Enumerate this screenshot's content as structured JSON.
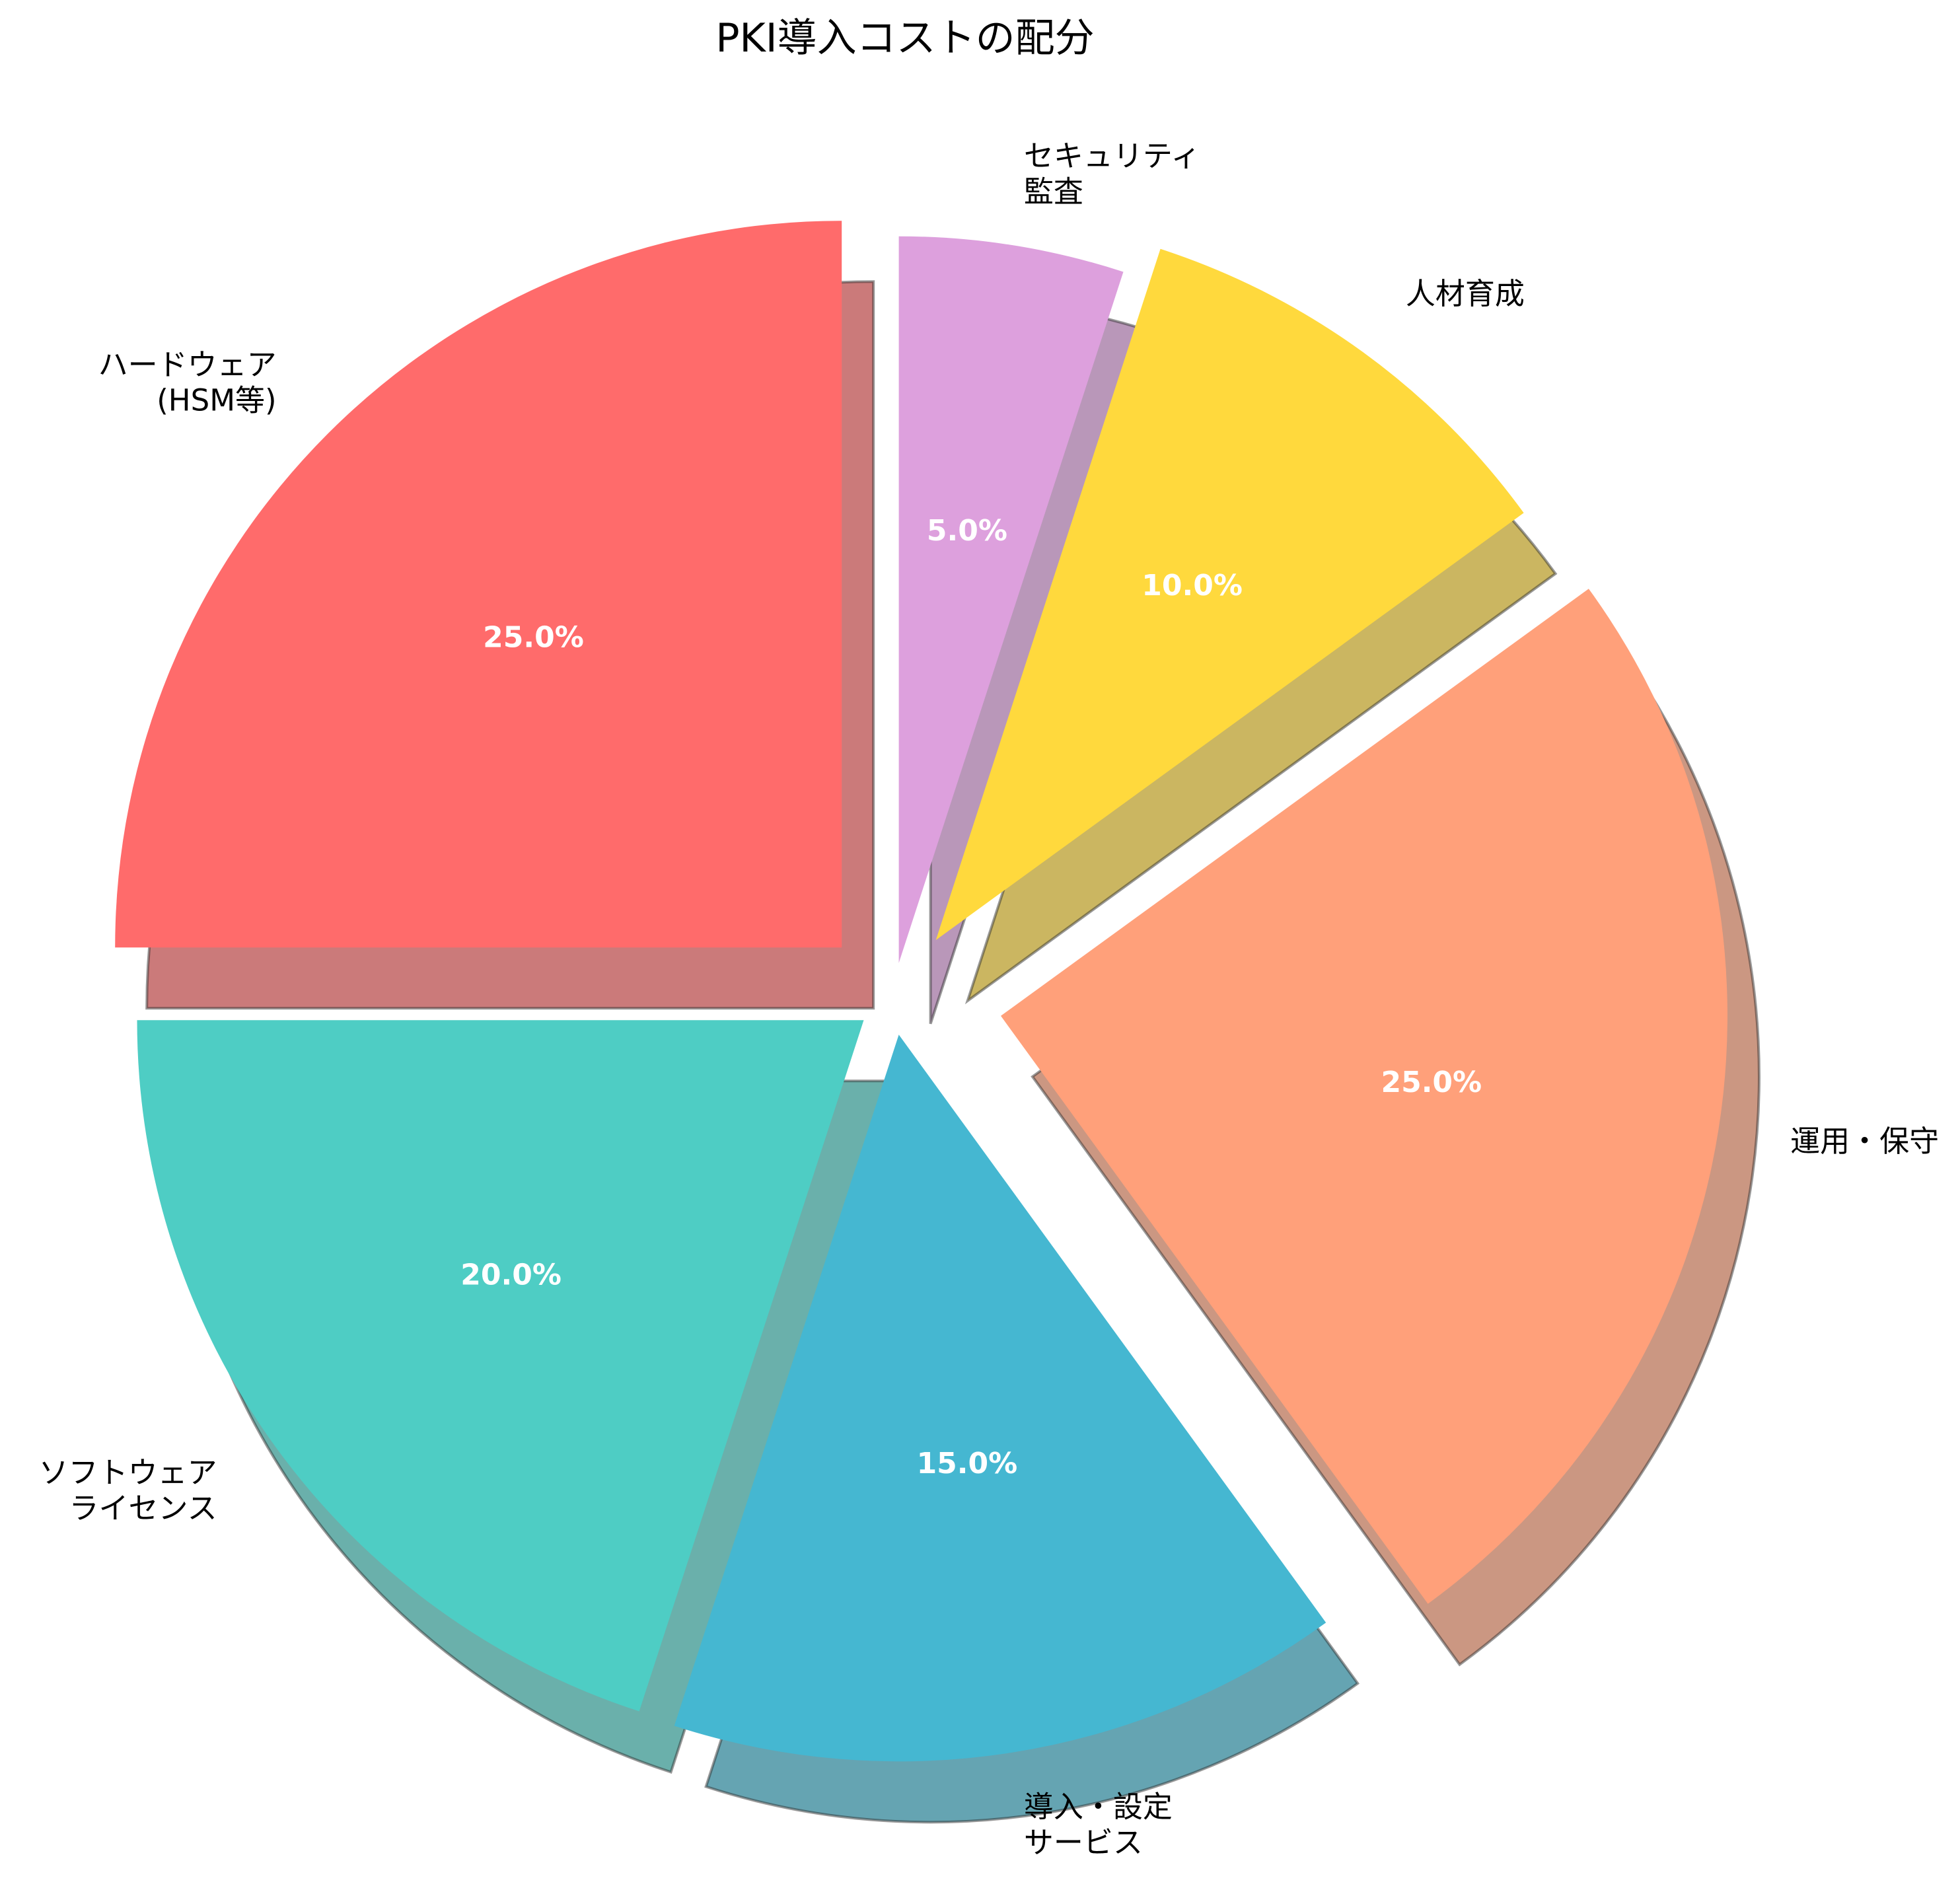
{
  "chart_data": {
    "type": "pie",
    "title": "PKI導入コストの配分",
    "categories": [
      "ハードウェア\n(HSM等)",
      "ソフトウェア\nライセンス",
      "導入・設定\nサービス",
      "運用・保守",
      "人材育成",
      "セキュリティ\n監査"
    ],
    "values": [
      25,
      20,
      15,
      25,
      10,
      5
    ],
    "value_labels": [
      "25.0%",
      "20.0%",
      "15.0%",
      "25.0%",
      "10.0%",
      "5.0%"
    ],
    "colors": [
      "#FF6B6B",
      "#4ECDC4",
      "#45B7D1",
      "#FFA07A",
      "#FFD93D",
      "#DDA0DD"
    ],
    "explode": [
      0.1,
      0.05,
      0.05,
      0.15,
      0.1,
      0.05
    ],
    "start_angle_deg": 90,
    "direction": "counterclockwise",
    "shadow": true,
    "legend": "none"
  }
}
